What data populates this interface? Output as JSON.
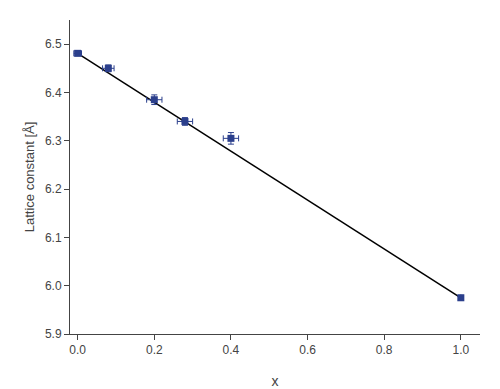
{
  "chart_data": {
    "type": "scatter",
    "xlabel": "x",
    "ylabel": "Lattice constant [Å]",
    "xlim": [
      -0.02,
      1.05
    ],
    "ylim": [
      5.9,
      6.55
    ],
    "xticks": [
      {
        "value": 0.0,
        "label": "0.0"
      },
      0.2,
      0.4,
      0.6,
      0.8,
      {
        "value": 1.0,
        "label": "1.0"
      }
    ],
    "yticks": [
      5.9,
      {
        "value": 6.0,
        "label": "6.0"
      },
      6.1,
      6.2,
      6.3,
      6.4,
      6.5
    ],
    "grid": false,
    "series": [
      {
        "type": "line",
        "color": "#000000",
        "line_style": "solid",
        "x": [
          0.0,
          1.0
        ],
        "values": [
          6.481,
          5.975
        ]
      },
      {
        "type": "scatter",
        "color": "#2b3f8c",
        "marker": "square",
        "x": [
          0.0,
          0.08,
          0.2,
          0.28,
          0.4,
          1.0
        ],
        "values": [
          6.481,
          6.45,
          6.385,
          6.34,
          6.305,
          5.975
        ],
        "x_err": [
          0.01,
          0.015,
          0.02,
          0.02,
          0.02,
          0.0
        ],
        "y_err": [
          0.005,
          0.007,
          0.01,
          0.008,
          0.012,
          0.005
        ]
      }
    ]
  }
}
